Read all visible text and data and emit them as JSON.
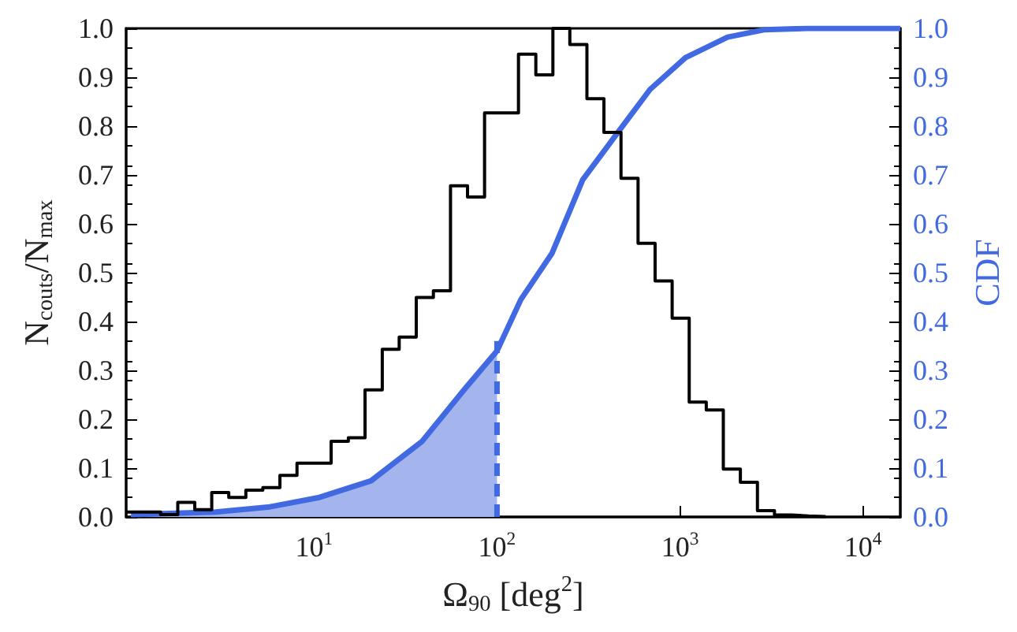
{
  "chart_data": {
    "type": "histogram",
    "xlabel": "Ω$_{90}$ [deg$^{2}$]",
    "ylabel": "N$_{couts}$/N$_{max}$",
    "y2label": "CDF",
    "log": "x",
    "grid": false,
    "xlim": [
      0.94,
      16000
    ],
    "xticks": [
      {
        "value": 10,
        "label": "10$^{1}$"
      },
      {
        "value": 100,
        "label": "10$^{2}$"
      },
      {
        "value": 1000,
        "label": "10$^{3}$"
      },
      {
        "value": 10000,
        "label": "10$^{4}$"
      }
    ],
    "ylim": [
      0,
      1
    ],
    "yticks": [
      {
        "value": 0,
        "label": "0.0"
      },
      {
        "value": 0.1,
        "label": "0.1"
      },
      {
        "value": 0.2,
        "label": "0.2"
      },
      {
        "value": 0.3,
        "label": "0.3"
      },
      {
        "value": 0.4,
        "label": "0.4"
      },
      {
        "value": 0.5,
        "label": "0.5"
      },
      {
        "value": 0.6,
        "label": "0.6"
      },
      {
        "value": 0.7,
        "label": "0.7"
      },
      {
        "value": 0.8,
        "label": "0.8"
      },
      {
        "value": 0.9,
        "label": "0.9"
      },
      {
        "value": 1,
        "label": "1.0"
      }
    ],
    "y2lim": [
      0,
      1
    ],
    "y2ticks": [
      {
        "value": 0,
        "label": "0.0"
      },
      {
        "value": 0.1,
        "label": "0.1"
      },
      {
        "value": 0.2,
        "label": "0.2"
      },
      {
        "value": 0.3,
        "label": "0.3"
      },
      {
        "value": 0.4,
        "label": "0.4"
      },
      {
        "value": 0.5,
        "label": "0.5"
      },
      {
        "value": 0.6,
        "label": "0.6"
      },
      {
        "value": 0.7,
        "label": "0.7"
      },
      {
        "value": 0.8,
        "label": "0.8"
      },
      {
        "value": 0.9,
        "label": "0.9"
      },
      {
        "value": 1,
        "label": "1.0"
      }
    ],
    "series": [
      {
        "type": "histogram",
        "color": "#000000",
        "bins": [
          0.944,
          1.17,
          1.45,
          1.8,
          2.23,
          2.76,
          3.42,
          4.24,
          5.25,
          6.51,
          8.07,
          10,
          12.4,
          15.4,
          19,
          23.6,
          29.2,
          36.2,
          44.9,
          55.7,
          69,
          85.5,
          106,
          131,
          163,
          202,
          250,
          310,
          384,
          476,
          590,
          731,
          906,
          1123,
          1392,
          1725,
          2138,
          2650,
          3284,
          4070,
          5045,
          6252
        ],
        "values": [
          0.01,
          0.01,
          0.005,
          0.03,
          0.015,
          0.05,
          0.04,
          0.055,
          0.06,
          0.085,
          0.11,
          0.11,
          0.155,
          0.162,
          0.26,
          0.343,
          0.368,
          0.449,
          0.463,
          0.678,
          0.655,
          0.827,
          0.827,
          0.947,
          0.905,
          1,
          0.967,
          0.856,
          0.787,
          0.693,
          0.56,
          0.483,
          0.407,
          0.235,
          0.219,
          0.098,
          0.071,
          0.013,
          0.004,
          0.002,
          0.001
        ]
      },
      {
        "type": "area",
        "axis": "y2",
        "color": "#a3b5ec",
        "x": [
          1,
          2.9,
          5.6,
          10.7,
          20.5,
          39,
          66,
          100
        ],
        "values": [
          0.005,
          0.01,
          0.02,
          0.04,
          0.074,
          0.155,
          0.26,
          0.34
        ]
      },
      {
        "type": "line",
        "axis": "y2",
        "color": "#4169e1",
        "x": [
          1,
          2.9,
          5.6,
          10.7,
          20.5,
          39,
          66,
          100,
          135,
          200,
          294,
          464,
          686,
          1072,
          1820,
          2870,
          5000,
          10000,
          16000
        ],
        "values": [
          0.005,
          0.01,
          0.02,
          0.04,
          0.074,
          0.155,
          0.26,
          0.34,
          0.445,
          0.54,
          0.69,
          0.79,
          0.875,
          0.94,
          0.982,
          0.997,
          1,
          1,
          1
        ]
      },
      {
        "type": "line",
        "axis": "y2",
        "color": "#4169e1",
        "line_style": "dashed",
        "x": [
          100,
          100
        ],
        "values": [
          0,
          0.36
        ]
      }
    ]
  }
}
